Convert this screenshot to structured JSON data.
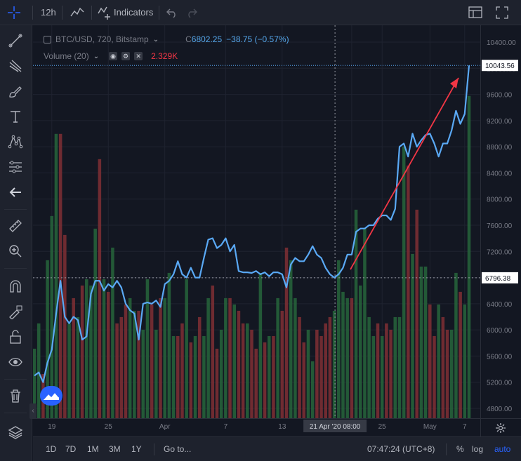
{
  "topbar": {
    "interval": "12h",
    "indicators_label": "Indicators"
  },
  "legend": {
    "symbol": "BTC/USD, 720, Bitstamp",
    "ohlc_prefix": "C",
    "close": "6802.25",
    "change": "−38.75 (−0.57%)",
    "volume_label": "Volume (20)",
    "volume_value": "2.329K",
    "up_color": "#55a6ea",
    "down_color": "#f23645"
  },
  "bottombar": {
    "ranges": [
      "1D",
      "7D",
      "1M",
      "3M",
      "1Y"
    ],
    "goto_label": "Go to...",
    "clock": "07:47:24 (UTC+8)",
    "percent_label": "%",
    "log_label": "log",
    "auto_label": "auto"
  },
  "chart_data": {
    "type": "line",
    "title": "BTC/USD, 720, Bitstamp",
    "x_ticks": [
      "19",
      "25",
      "Apr",
      "7",
      "13",
      "21 Apr '20  08:00",
      "25",
      "May",
      "7"
    ],
    "ylim": [
      4600,
      10600
    ],
    "y_ticks": [
      "10400.00",
      "10000.00",
      "9600.00",
      "9200.00",
      "8800.00",
      "8400.00",
      "8000.00",
      "7600.00",
      "7200.00",
      "6800.00",
      "6400.00",
      "6000.00",
      "5600.00",
      "5200.00",
      "4800.00"
    ],
    "price_labels": {
      "current": "10043.56",
      "crosshair": "6796.38"
    },
    "crosshair_time": "21 Apr '20  08:00",
    "series": [
      {
        "name": "BTC/USD",
        "color": "#5aa9f5",
        "values": [
          5300,
          5350,
          5200,
          5500,
          5700,
          6250,
          6750,
          6200,
          6100,
          6200,
          6150,
          5850,
          5900,
          6550,
          6750,
          6750,
          6600,
          6700,
          6650,
          6750,
          6650,
          6400,
          6300,
          6250,
          5850,
          6400,
          6420,
          6400,
          6450,
          6350,
          6700,
          6750,
          6850,
          7050,
          6850,
          6800,
          6950,
          6800,
          6800,
          7100,
          7380,
          7400,
          7250,
          7300,
          7400,
          7200,
          7300,
          6900,
          6880,
          6880,
          6870,
          6900,
          6850,
          6880,
          6820,
          6880,
          6880,
          6850,
          6650,
          7000,
          7100,
          7050,
          7050,
          7150,
          7280,
          7150,
          7100,
          6950,
          6850,
          6800,
          6850,
          6950,
          7150,
          7150,
          7500,
          7550,
          7550,
          7600,
          7600,
          7700,
          7750,
          7750,
          7680,
          7850,
          8800,
          8850,
          8650,
          9000,
          8800,
          8900,
          8980,
          9000,
          8850,
          8650,
          8850,
          8850,
          9050,
          9350,
          9150,
          9300,
          10043
        ]
      }
    ],
    "volume": {
      "ylim": [
        0,
        12000
      ],
      "values": [
        1100,
        1500,
        700,
        2500,
        3200,
        4500,
        4500,
        2900,
        1500,
        1900,
        1600,
        2100,
        2200,
        2100,
        3000,
        4100,
        2200,
        2000,
        2700,
        1500,
        1600,
        1800,
        1900,
        1700,
        1700,
        1400,
        2200,
        1800,
        1400,
        1900,
        1900,
        2300,
        1300,
        1300,
        1500,
        2200,
        1200,
        1300,
        1600,
        1300,
        1900,
        2100,
        1100,
        1400,
        1900,
        1900,
        1800,
        1700,
        1500,
        1500,
        1400,
        1100,
        2300,
        1200,
        1300,
        1300,
        1900,
        1700,
        2700,
        2500,
        1900,
        1600,
        1200,
        1400,
        900,
        1400,
        1300,
        1500,
        1600,
        1700,
        2500,
        2000,
        1900,
        1900,
        3300,
        2100,
        3000,
        1600,
        1300,
        1500,
        1300,
        1500,
        1400,
        1600,
        1600,
        4300,
        4000,
        2600,
        3300,
        2400,
        2400,
        1800,
        1300,
        1800,
        1600,
        1400,
        1400,
        2300,
        2000,
        1800,
        5100
      ],
      "up_flags": [
        1,
        1,
        0,
        1,
        1,
        1,
        0,
        0,
        1,
        0,
        1,
        0,
        1,
        1,
        1,
        0,
        1,
        0,
        1,
        0,
        0,
        0,
        1,
        1,
        0,
        1,
        1,
        0,
        1,
        0,
        1,
        1,
        1,
        0,
        0,
        1,
        0,
        1,
        0,
        1,
        1,
        0,
        0,
        1,
        1,
        0,
        1,
        0,
        0,
        1,
        0,
        0,
        1,
        0,
        1,
        0,
        1,
        0,
        0,
        1,
        1,
        0,
        0,
        1,
        1,
        0,
        0,
        0,
        0,
        1,
        1,
        1,
        1,
        0,
        1,
        1,
        1,
        1,
        1,
        0,
        1,
        0,
        0,
        1,
        1,
        1,
        0,
        1,
        0,
        1,
        1,
        0,
        0,
        1,
        0,
        0,
        1,
        1,
        0,
        1,
        1
      ]
    }
  }
}
